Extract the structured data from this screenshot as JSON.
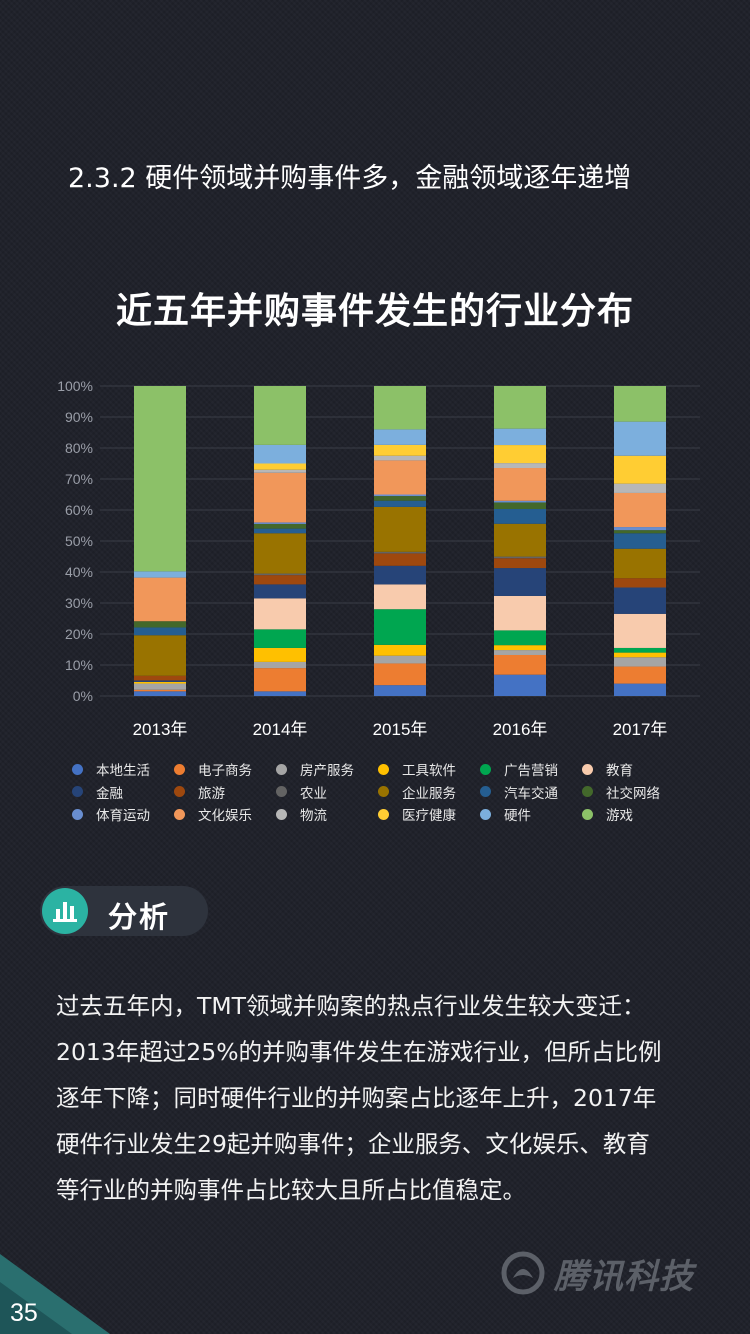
{
  "section_heading": "2.3.2 硬件领域并购事件多，金融领域逐年递增",
  "chart_data": {
    "type": "bar",
    "stacked": true,
    "title": "近五年并购事件发生的行业分布",
    "xlabel": "",
    "ylabel": "",
    "ylim": [
      0,
      100
    ],
    "yticks": [
      "0%",
      "10%",
      "20%",
      "30%",
      "40%",
      "50%",
      "60%",
      "70%",
      "80%",
      "90%",
      "100%"
    ],
    "grid": true,
    "legend_position": "bottom",
    "categories": [
      "2013年",
      "2014年",
      "2015年",
      "2016年",
      "2017年"
    ],
    "series": [
      {
        "name": "本地生活",
        "color": "#4472c4",
        "values": [
          1.5,
          1.5,
          3.5,
          6.5,
          4
        ]
      },
      {
        "name": "电子商务",
        "color": "#ed7d31",
        "values": [
          0.5,
          7.5,
          7,
          6,
          5.5
        ]
      },
      {
        "name": "房产服务",
        "color": "#a5a5a5",
        "values": [
          2,
          2,
          2.5,
          1.5,
          3
        ]
      },
      {
        "name": "工具软件",
        "color": "#ffc000",
        "values": [
          0.5,
          4.5,
          3.5,
          1.5,
          1.5
        ]
      },
      {
        "name": "广告营销",
        "color": "#00a650",
        "values": [
          0,
          6,
          11.5,
          4.5,
          1.5
        ]
      },
      {
        "name": "教育",
        "color": "#f8cbad",
        "values": [
          0,
          10,
          8,
          10.5,
          11
        ]
      },
      {
        "name": "金融",
        "color": "#264478",
        "values": [
          0.5,
          4.5,
          6,
          8.5,
          8.5
        ]
      },
      {
        "name": "旅游",
        "color": "#9e480e",
        "values": [
          1.5,
          3,
          4,
          3,
          3
        ]
      },
      {
        "name": "农业",
        "color": "#636363",
        "values": [
          0,
          0.5,
          0.5,
          0.5,
          0
        ]
      },
      {
        "name": "企业服务",
        "color": "#997300",
        "values": [
          13,
          13,
          14.5,
          10,
          9.5
        ]
      },
      {
        "name": "汽车交通",
        "color": "#255e91",
        "values": [
          2.5,
          1.5,
          2,
          4.5,
          5
        ]
      },
      {
        "name": "社交网络",
        "color": "#43682b",
        "values": [
          2,
          1.5,
          1.5,
          2,
          1
        ]
      },
      {
        "name": "体育运动",
        "color": "#698ed0",
        "values": [
          0,
          0.5,
          0.5,
          0.5,
          1
        ]
      },
      {
        "name": "文化娱乐",
        "color": "#f1975a",
        "values": [
          14,
          16,
          11,
          10,
          11
        ]
      },
      {
        "name": "物流",
        "color": "#b7b7b7",
        "values": [
          0,
          1,
          1.5,
          1.5,
          3
        ]
      },
      {
        "name": "医疗健康",
        "color": "#ffcd33",
        "values": [
          0,
          2,
          3.5,
          5.5,
          9
        ]
      },
      {
        "name": "硬件",
        "color": "#7cafdd",
        "values": [
          2,
          6,
          5,
          5,
          11
        ]
      },
      {
        "name": "游戏",
        "color": "#8cc168",
        "values": [
          59.5,
          19,
          14,
          13,
          11.5
        ]
      }
    ]
  },
  "badge": {
    "label": "分析",
    "icon": "bar-chart-icon"
  },
  "analysis_lines": [
    "过去五年内，TMT领域并购案的热点行业发生较大变迁：",
    "2013年超过25%的并购事件发生在游戏行业，但所占比例",
    "逐年下降；同时硬件行业的并购案占比逐年上升，2017年",
    "硬件行业发生29起并购事件；企业服务、文化娱乐、教育",
    "等行业的并购事件占比较大且所占比值稳定。"
  ],
  "brand": {
    "name": "腾讯科技",
    "icon": "tencent-logo-icon"
  },
  "page_number": "35",
  "colors": {
    "background": "#20222b",
    "accent": "#2bb3a3"
  }
}
